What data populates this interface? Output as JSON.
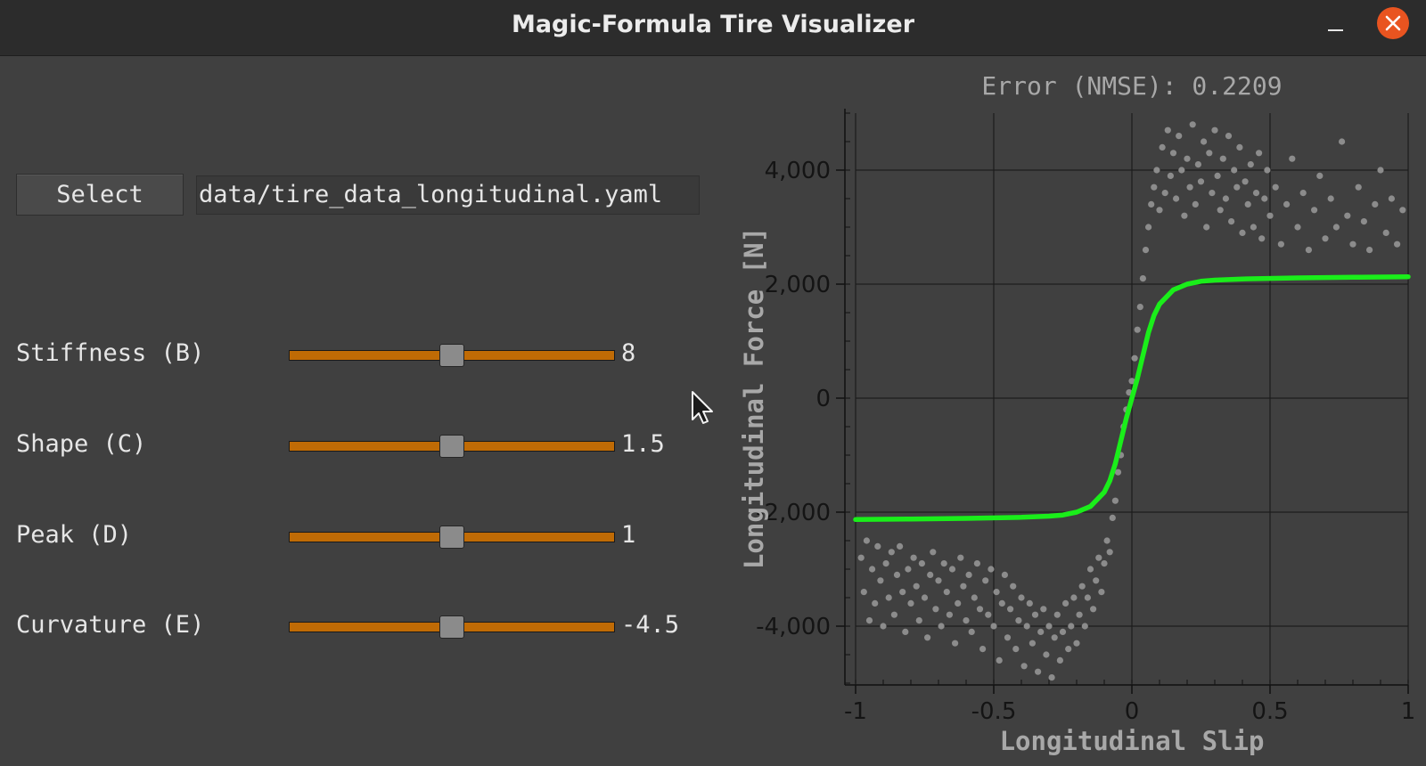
{
  "window": {
    "title": "Magic-Formula Tire Visualizer"
  },
  "file": {
    "select_label": "Select",
    "path": "data/tire_data_longitudinal.yaml"
  },
  "params": [
    {
      "label": "Stiffness (B)",
      "value": "8",
      "position": 0.5
    },
    {
      "label": "Shape (C)",
      "value": "1.5",
      "position": 0.5
    },
    {
      "label": "Peak (D)",
      "value": "1",
      "position": 0.5
    },
    {
      "label": "Curvature (E)",
      "value": "-4.5",
      "position": 0.5
    }
  ],
  "colors": {
    "slider_track": "#c06b05",
    "fit_line": "#1aee1a",
    "scatter": "#8c8c8c",
    "close_button": "#e95420"
  },
  "icons": {
    "close": "close-icon",
    "minimize": "minimize-icon",
    "cursor": "mouse-pointer-icon"
  },
  "chart_data": {
    "type": "scatter",
    "title": "Error (NMSE): 0.2209",
    "xlabel": "Longitudinal Slip",
    "ylabel": "Longitudinal Force [N]",
    "xlim": [
      -1,
      1
    ],
    "ylim": [
      -5000,
      5000
    ],
    "xticks": [
      "-1",
      "-0.5",
      "0",
      "0.5",
      "1"
    ],
    "yticks": [
      "-4,000",
      "-2,000",
      "0",
      "2,000",
      "4,000"
    ],
    "grid": true,
    "series": [
      {
        "type": "scatter",
        "points": [
          [
            -0.98,
            -2800
          ],
          [
            -0.97,
            -3400
          ],
          [
            -0.96,
            -2500
          ],
          [
            -0.95,
            -3900
          ],
          [
            -0.94,
            -3000
          ],
          [
            -0.93,
            -3600
          ],
          [
            -0.92,
            -2600
          ],
          [
            -0.91,
            -3200
          ],
          [
            -0.9,
            -4000
          ],
          [
            -0.89,
            -2900
          ],
          [
            -0.88,
            -3500
          ],
          [
            -0.87,
            -2700
          ],
          [
            -0.86,
            -3800
          ],
          [
            -0.85,
            -3100
          ],
          [
            -0.84,
            -2600
          ],
          [
            -0.83,
            -3400
          ],
          [
            -0.82,
            -4100
          ],
          [
            -0.81,
            -3000
          ],
          [
            -0.8,
            -3600
          ],
          [
            -0.79,
            -2800
          ],
          [
            -0.78,
            -3300
          ],
          [
            -0.77,
            -3900
          ],
          [
            -0.76,
            -2900
          ],
          [
            -0.75,
            -3500
          ],
          [
            -0.74,
            -4200
          ],
          [
            -0.73,
            -3100
          ],
          [
            -0.72,
            -2700
          ],
          [
            -0.71,
            -3700
          ],
          [
            -0.7,
            -3200
          ],
          [
            -0.69,
            -4000
          ],
          [
            -0.68,
            -2900
          ],
          [
            -0.67,
            -3400
          ],
          [
            -0.66,
            -3800
          ],
          [
            -0.65,
            -3000
          ],
          [
            -0.64,
            -4300
          ],
          [
            -0.63,
            -3600
          ],
          [
            -0.62,
            -2800
          ],
          [
            -0.61,
            -3300
          ],
          [
            -0.6,
            -3900
          ],
          [
            -0.59,
            -3100
          ],
          [
            -0.58,
            -4100
          ],
          [
            -0.57,
            -3500
          ],
          [
            -0.56,
            -2900
          ],
          [
            -0.55,
            -3700
          ],
          [
            -0.54,
            -4400
          ],
          [
            -0.53,
            -3200
          ],
          [
            -0.52,
            -3800
          ],
          [
            -0.51,
            -3000
          ],
          [
            -0.5,
            -4000
          ],
          [
            -0.49,
            -3400
          ],
          [
            -0.48,
            -4600
          ],
          [
            -0.47,
            -3600
          ],
          [
            -0.46,
            -3100
          ],
          [
            -0.45,
            -4200
          ],
          [
            -0.44,
            -3700
          ],
          [
            -0.43,
            -3300
          ],
          [
            -0.42,
            -4400
          ],
          [
            -0.41,
            -3900
          ],
          [
            -0.4,
            -3500
          ],
          [
            -0.39,
            -4700
          ],
          [
            -0.38,
            -4000
          ],
          [
            -0.37,
            -3600
          ],
          [
            -0.36,
            -4300
          ],
          [
            -0.35,
            -3800
          ],
          [
            -0.34,
            -4800
          ],
          [
            -0.33,
            -4100
          ],
          [
            -0.32,
            -3700
          ],
          [
            -0.31,
            -4500
          ],
          [
            -0.3,
            -4000
          ],
          [
            -0.29,
            -4900
          ],
          [
            -0.28,
            -4200
          ],
          [
            -0.27,
            -3800
          ],
          [
            -0.26,
            -4600
          ],
          [
            -0.25,
            -4100
          ],
          [
            -0.24,
            -3600
          ],
          [
            -0.23,
            -4400
          ],
          [
            -0.22,
            -4000
          ],
          [
            -0.21,
            -3500
          ],
          [
            -0.2,
            -4300
          ],
          [
            -0.19,
            -3800
          ],
          [
            -0.18,
            -3300
          ],
          [
            -0.17,
            -4000
          ],
          [
            -0.16,
            -3500
          ],
          [
            -0.15,
            -3000
          ],
          [
            -0.14,
            -3700
          ],
          [
            -0.13,
            -3200
          ],
          [
            -0.12,
            -2800
          ],
          [
            -0.11,
            -3400
          ],
          [
            -0.1,
            -2900
          ],
          [
            -0.09,
            -2500
          ],
          [
            -0.08,
            -2700
          ],
          [
            -0.07,
            -2100
          ],
          [
            -0.06,
            -1800
          ],
          [
            -0.05,
            -1300
          ],
          [
            -0.04,
            -1000
          ],
          [
            -0.03,
            -500
          ],
          [
            -0.02,
            -200
          ],
          [
            -0.01,
            100
          ],
          [
            0,
            300
          ],
          [
            0.01,
            700
          ],
          [
            0.02,
            1200
          ],
          [
            0.03,
            1600
          ],
          [
            0.04,
            2100
          ],
          [
            0.05,
            2600
          ],
          [
            0.06,
            3000
          ],
          [
            0.07,
            3400
          ],
          [
            0.08,
            3700
          ],
          [
            0.09,
            4000
          ],
          [
            0.1,
            3300
          ],
          [
            0.11,
            4400
          ],
          [
            0.12,
            3600
          ],
          [
            0.13,
            4700
          ],
          [
            0.14,
            3900
          ],
          [
            0.15,
            4300
          ],
          [
            0.16,
            3500
          ],
          [
            0.17,
            4600
          ],
          [
            0.18,
            4000
          ],
          [
            0.19,
            3200
          ],
          [
            0.2,
            4200
          ],
          [
            0.21,
            3700
          ],
          [
            0.22,
            4800
          ],
          [
            0.23,
            3400
          ],
          [
            0.24,
            4100
          ],
          [
            0.25,
            3800
          ],
          [
            0.26,
            4500
          ],
          [
            0.27,
            3000
          ],
          [
            0.28,
            4300
          ],
          [
            0.29,
            3600
          ],
          [
            0.3,
            4700
          ],
          [
            0.31,
            3900
          ],
          [
            0.32,
            3300
          ],
          [
            0.33,
            4200
          ],
          [
            0.34,
            3500
          ],
          [
            0.35,
            4600
          ],
          [
            0.36,
            3100
          ],
          [
            0.37,
            4000
          ],
          [
            0.38,
            3700
          ],
          [
            0.39,
            4400
          ],
          [
            0.4,
            2900
          ],
          [
            0.41,
            3800
          ],
          [
            0.42,
            3400
          ],
          [
            0.43,
            4100
          ],
          [
            0.44,
            3000
          ],
          [
            0.45,
            3600
          ],
          [
            0.46,
            4300
          ],
          [
            0.47,
            2800
          ],
          [
            0.48,
            3500
          ],
          [
            0.49,
            4000
          ],
          [
            0.5,
            3200
          ],
          [
            0.52,
            3700
          ],
          [
            0.54,
            2700
          ],
          [
            0.56,
            3400
          ],
          [
            0.58,
            4200
          ],
          [
            0.6,
            3000
          ],
          [
            0.62,
            3600
          ],
          [
            0.64,
            2600
          ],
          [
            0.66,
            3300
          ],
          [
            0.68,
            3900
          ],
          [
            0.7,
            2800
          ],
          [
            0.72,
            3500
          ],
          [
            0.74,
            3000
          ],
          [
            0.76,
            4500
          ],
          [
            0.78,
            3200
          ],
          [
            0.8,
            2700
          ],
          [
            0.82,
            3700
          ],
          [
            0.84,
            3100
          ],
          [
            0.86,
            2600
          ],
          [
            0.88,
            3400
          ],
          [
            0.9,
            4000
          ],
          [
            0.92,
            2900
          ],
          [
            0.94,
            3500
          ],
          [
            0.96,
            2700
          ],
          [
            0.98,
            3300
          ]
        ]
      },
      {
        "type": "line",
        "x": [
          -1,
          -0.8,
          -0.6,
          -0.4,
          -0.3,
          -0.25,
          -0.2,
          -0.15,
          -0.1,
          -0.08,
          -0.06,
          -0.04,
          -0.02,
          0,
          0.02,
          0.04,
          0.06,
          0.08,
          0.1,
          0.15,
          0.2,
          0.25,
          0.3,
          0.4,
          0.6,
          0.8,
          1
        ],
        "y": [
          -2130,
          -2120,
          -2110,
          -2090,
          -2070,
          -2050,
          -2000,
          -1900,
          -1650,
          -1450,
          -1150,
          -750,
          -350,
          0,
          350,
          750,
          1150,
          1450,
          1650,
          1900,
          2000,
          2050,
          2070,
          2090,
          2110,
          2120,
          2130
        ]
      }
    ]
  }
}
